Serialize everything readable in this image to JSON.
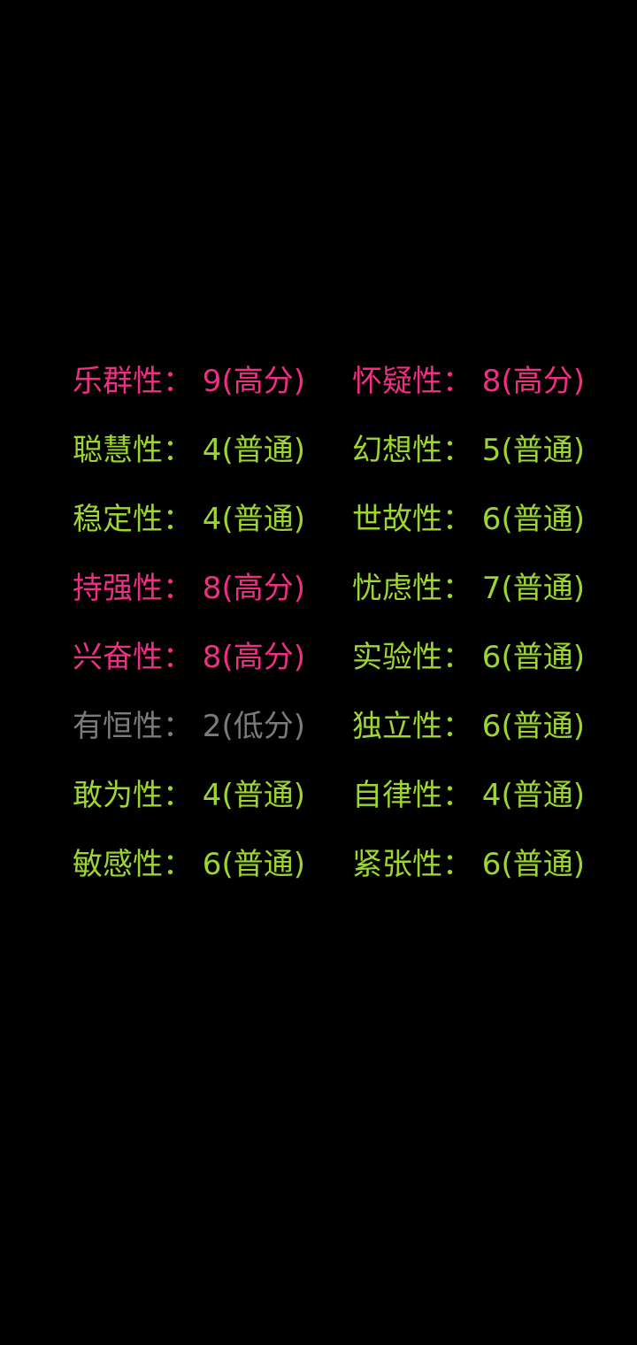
{
  "screen": {
    "description_title": "16PF personality factor score list",
    "background_color": "#000000"
  },
  "colors": {
    "high": "#ee2f83",
    "normal": "#9dd631",
    "low": "#7b7b7b"
  },
  "results": {
    "left_column": [
      {
        "label": "乐群性",
        "score": 9,
        "level": "高分",
        "category": "high",
        "display": "乐群性： 9(高分)"
      },
      {
        "label": "聪慧性",
        "score": 4,
        "level": "普通",
        "category": "normal",
        "display": "聪慧性： 4(普通)"
      },
      {
        "label": "稳定性",
        "score": 4,
        "level": "普通",
        "category": "normal",
        "display": "稳定性： 4(普通)"
      },
      {
        "label": "持强性",
        "score": 8,
        "level": "高分",
        "category": "high",
        "display": "持强性： 8(高分)"
      },
      {
        "label": "兴奋性",
        "score": 8,
        "level": "高分",
        "category": "high",
        "display": "兴奋性： 8(高分)"
      },
      {
        "label": "有恒性",
        "score": 2,
        "level": "低分",
        "category": "low",
        "display": "有恒性： 2(低分)"
      },
      {
        "label": "敢为性",
        "score": 4,
        "level": "普通",
        "category": "normal",
        "display": "敢为性： 4(普通)"
      },
      {
        "label": "敏感性",
        "score": 6,
        "level": "普通",
        "category": "normal",
        "display": "敏感性： 6(普通)"
      }
    ],
    "right_column": [
      {
        "label": "怀疑性",
        "score": 8,
        "level": "高分",
        "category": "high",
        "display": "怀疑性： 8(高分)"
      },
      {
        "label": "幻想性",
        "score": 5,
        "level": "普通",
        "category": "normal",
        "display": "幻想性： 5(普通)"
      },
      {
        "label": "世故性",
        "score": 6,
        "level": "普通",
        "category": "normal",
        "display": "世故性： 6(普通)"
      },
      {
        "label": "忧虑性",
        "score": 7,
        "level": "普通",
        "category": "normal",
        "display": "忧虑性： 7(普通)"
      },
      {
        "label": "实验性",
        "score": 6,
        "level": "普通",
        "category": "normal",
        "display": "实验性： 6(普通)"
      },
      {
        "label": "独立性",
        "score": 6,
        "level": "普通",
        "category": "normal",
        "display": "独立性： 6(普通)"
      },
      {
        "label": "自律性",
        "score": 4,
        "level": "普通",
        "category": "normal",
        "display": "自律性： 4(普通)"
      },
      {
        "label": "紧张性",
        "score": 6,
        "level": "普通",
        "category": "normal",
        "display": "紧张性： 6(普通)"
      }
    ]
  }
}
